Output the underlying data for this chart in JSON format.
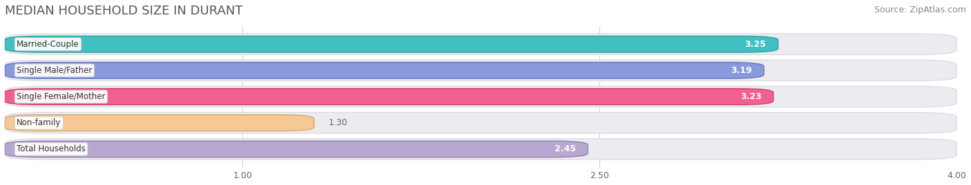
{
  "title": "MEDIAN HOUSEHOLD SIZE IN DURANT",
  "source": "Source: ZipAtlas.com",
  "categories": [
    "Married-Couple",
    "Single Male/Father",
    "Single Female/Mother",
    "Non-family",
    "Total Households"
  ],
  "values": [
    3.25,
    3.19,
    3.23,
    1.3,
    2.45
  ],
  "bar_colors": [
    "#40c0c0",
    "#8899dd",
    "#f06090",
    "#f5c894",
    "#b8a8d0"
  ],
  "bar_edge_colors": [
    "#30a0a0",
    "#6677bb",
    "#d04470",
    "#d4a870",
    "#9080aa"
  ],
  "xlim_data": [
    0.0,
    4.0
  ],
  "xstart": 0.0,
  "xticks": [
    1.0,
    2.5,
    4.0
  ],
  "xticklabels": [
    "1.00",
    "2.50",
    "4.00"
  ],
  "label_color": "#ffffff",
  "label_outside_color": "#666666",
  "background_color": "#ffffff",
  "bar_bg_color": "#ebebf0",
  "title_fontsize": 13,
  "source_fontsize": 9,
  "tick_fontsize": 9,
  "bar_label_fontsize": 9,
  "category_fontsize": 8.5,
  "bar_height": 0.62,
  "figsize": [
    14.06,
    2.69
  ],
  "dpi": 100
}
